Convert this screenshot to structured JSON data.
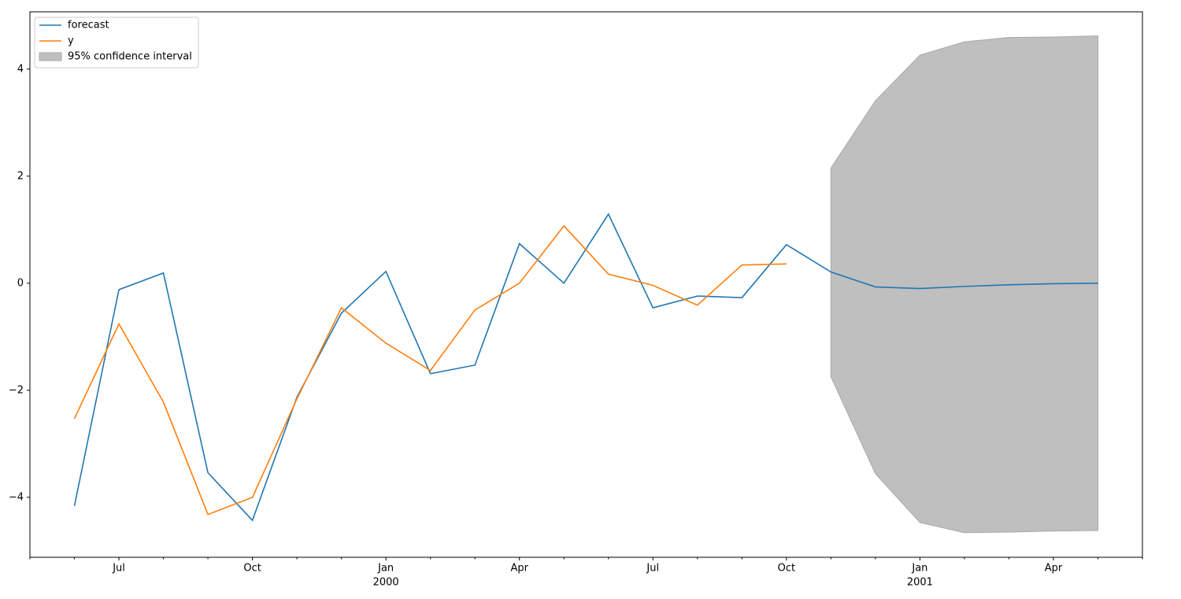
{
  "chart_data": {
    "type": "line",
    "x": [
      "1999-06",
      "1999-07",
      "1999-08",
      "1999-09",
      "1999-10",
      "1999-11",
      "1999-12",
      "2000-01",
      "2000-02",
      "2000-03",
      "2000-04",
      "2000-05",
      "2000-06",
      "2000-07",
      "2000-08",
      "2000-09",
      "2000-10",
      "2000-11",
      "2000-12",
      "2001-01",
      "2001-02",
      "2001-03",
      "2001-04",
      "2001-05"
    ],
    "series": [
      {
        "name": "forecast",
        "color": "#1f77b4",
        "values": [
          -4.16,
          -0.12,
          0.19,
          -3.54,
          -4.43,
          -2.13,
          -0.56,
          0.22,
          -1.69,
          -1.53,
          0.74,
          0.0,
          1.29,
          -0.46,
          -0.24,
          -0.27,
          0.72,
          0.21,
          -0.07,
          -0.1,
          -0.06,
          -0.03,
          -0.01,
          0.0
        ]
      },
      {
        "name": "y",
        "color": "#ff7f0e",
        "values": [
          -2.53,
          -0.76,
          -2.22,
          -4.32,
          -4.0,
          -2.16,
          -0.46,
          -1.12,
          -1.63,
          -0.5,
          0.0,
          1.07,
          0.17,
          -0.04,
          -0.41,
          0.34,
          0.36,
          null,
          null,
          null,
          null,
          null,
          null,
          null
        ]
      }
    ],
    "confidence_interval": {
      "name": "95% confidence interval",
      "color": "#bfbfbf",
      "upper": [
        null,
        null,
        null,
        null,
        null,
        null,
        null,
        null,
        null,
        null,
        null,
        null,
        null,
        null,
        null,
        null,
        null,
        2.15,
        3.41,
        4.26,
        4.51,
        4.59,
        4.6,
        4.62
      ],
      "lower": [
        null,
        null,
        null,
        null,
        null,
        null,
        null,
        null,
        null,
        null,
        null,
        null,
        null,
        null,
        null,
        null,
        null,
        -1.75,
        -3.56,
        -4.47,
        -4.66,
        -4.65,
        -4.63,
        -4.62
      ]
    },
    "xlim": [
      "1999-05",
      "2001-06"
    ],
    "xticks": [
      {
        "value": "1999-07",
        "label": "Jul"
      },
      {
        "value": "1999-10",
        "label": "Oct"
      },
      {
        "value": "2000-01",
        "label": [
          "Jan",
          "2000"
        ]
      },
      {
        "value": "2000-04",
        "label": "Apr"
      },
      {
        "value": "2000-07",
        "label": "Jul"
      },
      {
        "value": "2000-10",
        "label": "Oct"
      },
      {
        "value": "2001-01",
        "label": [
          "Jan",
          "2001"
        ]
      },
      {
        "value": "2001-04",
        "label": "Apr"
      }
    ],
    "xminorticks": [
      "1999-05",
      "1999-06",
      "1999-08",
      "1999-09",
      "1999-11",
      "1999-12",
      "2000-02",
      "2000-03",
      "2000-05",
      "2000-06",
      "2000-08",
      "2000-09",
      "2000-11",
      "2000-12",
      "2001-02",
      "2001-03",
      "2001-05",
      "2001-06"
    ],
    "ylim": [
      -5.12,
      5.07
    ],
    "yticks": [
      {
        "value": -4,
        "label": "−4"
      },
      {
        "value": -2,
        "label": "−2"
      },
      0,
      2,
      4
    ],
    "legend": "upper left",
    "grid": false
  }
}
